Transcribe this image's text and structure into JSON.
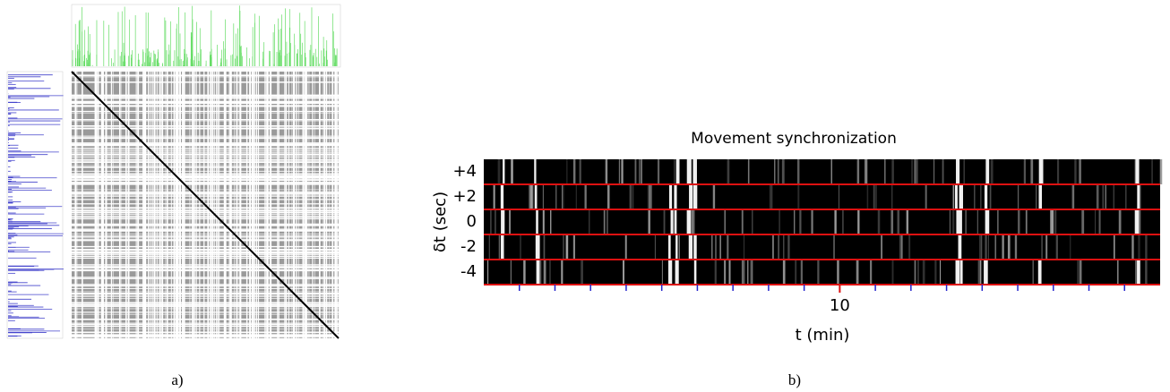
{
  "figure": {
    "panels": [
      {
        "label": "a)"
      },
      {
        "label": "b)",
        "chart_data": {
          "type": "heatmap",
          "title": "Movement synchronization",
          "x_label": "t (min)",
          "y_label": "δt (sec)",
          "xlim": [
            0,
            19
          ],
          "xticks": [
            10
          ],
          "minor_xticks": [
            1,
            2,
            3,
            4,
            5,
            6,
            7,
            8,
            9,
            11,
            12,
            13,
            14,
            15,
            16,
            17,
            18
          ],
          "ylim": [
            -5,
            5
          ],
          "yticks": [
            {
              "value": 4,
              "label": "+4"
            },
            {
              "value": 2,
              "label": "+2"
            },
            0,
            -2,
            -4
          ],
          "band_edges": [
            3,
            1,
            -1,
            -3
          ],
          "background": "#000000",
          "edge_color": "#dd1111",
          "tick_color": "#2222cc"
        }
      }
    ]
  }
}
